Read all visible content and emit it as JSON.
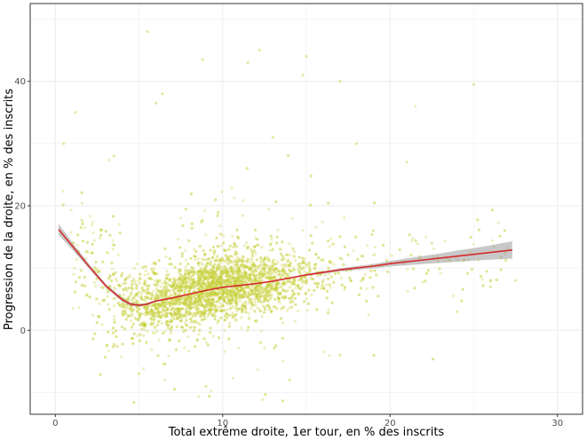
{
  "chart_data": {
    "type": "scatter",
    "xlabel": "Total extrême droite, 1er tour, en % des inscrits",
    "ylabel": "Progression de la droite, en % des inscrits",
    "xlim": [
      -1.5,
      31.5
    ],
    "ylim": [
      -13.5,
      52.5
    ],
    "x_ticks": [
      0,
      10,
      20,
      30
    ],
    "y_ticks": [
      0,
      20,
      40
    ],
    "grid": true,
    "colors": {
      "points": "#c8cf3a",
      "smooth_line": "#d62b2b",
      "confidence_band": "#9a9a9a",
      "grid": "#ebebeb",
      "panel_border": "#333333"
    },
    "smooth": {
      "x": [
        0.2,
        1,
        2,
        3,
        4,
        4.5,
        5,
        5.5,
        6,
        7,
        8,
        9,
        10,
        11,
        12,
        13,
        14,
        15,
        16,
        17,
        18,
        19,
        20,
        21,
        22,
        23,
        24,
        25,
        26,
        27.3
      ],
      "y": [
        16.2,
        13.6,
        10.3,
        7.2,
        4.9,
        4.2,
        4.0,
        4.2,
        4.7,
        5.2,
        5.8,
        6.4,
        6.9,
        7.2,
        7.5,
        7.9,
        8.4,
        8.9,
        9.3,
        9.7,
        10.0,
        10.3,
        10.7,
        11.0,
        11.3,
        11.6,
        11.9,
        12.2,
        12.5,
        12.9
      ],
      "lower": [
        15.3,
        13.0,
        9.9,
        6.9,
        4.6,
        3.95,
        3.8,
        4.0,
        4.55,
        5.1,
        5.7,
        6.3,
        6.8,
        7.1,
        7.4,
        7.8,
        8.3,
        8.75,
        9.1,
        9.45,
        9.7,
        9.95,
        10.25,
        10.45,
        10.65,
        10.85,
        11.0,
        11.2,
        11.35,
        11.5
      ],
      "upper": [
        17.1,
        14.2,
        10.7,
        7.5,
        5.2,
        4.45,
        4.2,
        4.4,
        4.85,
        5.3,
        5.9,
        6.5,
        7.0,
        7.3,
        7.6,
        8.0,
        8.5,
        9.05,
        9.5,
        9.95,
        10.3,
        10.65,
        11.15,
        11.55,
        11.95,
        12.35,
        12.8,
        13.2,
        13.65,
        14.3
      ]
    },
    "points": {
      "note_count": 14000,
      "cluster_center": [
        9.5,
        5.8
      ],
      "outliers": [
        [
          5.5,
          48
        ],
        [
          12.2,
          45
        ],
        [
          11.5,
          43
        ],
        [
          8.8,
          43.5
        ],
        [
          6.4,
          38
        ],
        [
          6,
          36.5
        ],
        [
          1.2,
          35
        ],
        [
          14.8,
          41
        ],
        [
          17,
          40
        ],
        [
          25,
          39.5
        ],
        [
          21,
          27
        ],
        [
          18,
          30
        ],
        [
          13,
          31
        ],
        [
          0.5,
          30
        ],
        [
          3.5,
          28
        ],
        [
          22.5,
          14
        ],
        [
          26,
          7
        ],
        [
          27.5,
          8
        ],
        [
          15,
          44
        ],
        [
          24,
          3
        ],
        [
          19,
          16
        ],
        [
          14,
          -8
        ],
        [
          9,
          -9
        ],
        [
          5,
          -7
        ],
        [
          17,
          -4
        ]
      ]
    }
  }
}
